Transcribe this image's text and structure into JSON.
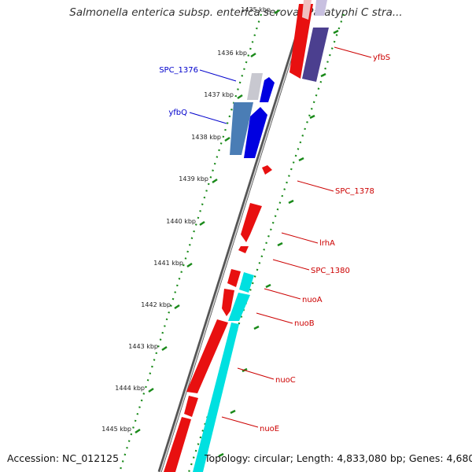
{
  "title": "Salmonella enterica subsp. enterica serovar Paratyphi C stra...",
  "footer": {
    "accession": "Accession: NC_012125",
    "topology": "Topology: circular; Length: 4,833,080 bp; Genes: 4,680"
  },
  "ticks": [
    {
      "label": "1435 kbp"
    },
    {
      "label": "1436 kbp"
    },
    {
      "label": "1437 kbp"
    },
    {
      "label": "1438 kbp"
    },
    {
      "label": "1439 kbp"
    },
    {
      "label": "1440 kbp"
    },
    {
      "label": "1441 kbp"
    },
    {
      "label": "1442 kbp"
    },
    {
      "label": "1443 kbp"
    },
    {
      "label": "1444 kbp"
    },
    {
      "label": "1445 kbp"
    }
  ],
  "genes": [
    {
      "name": "yfbS",
      "strand": "reverse",
      "color": "#4b3f8f"
    },
    {
      "name": "SPC_1376",
      "strand": "forward",
      "color": "#c8c8d0"
    },
    {
      "name": "yfbQ",
      "strand": "forward",
      "color": "#4a7db5"
    },
    {
      "name": "SPC_1378",
      "strand": "reverse",
      "color": "#e81010"
    },
    {
      "name": "lrhA",
      "strand": "reverse",
      "color": "#e81010"
    },
    {
      "name": "SPC_1380",
      "strand": "reverse",
      "color": "#e81010"
    },
    {
      "name": "nuoA",
      "strand": "reverse",
      "color": "#e81010"
    },
    {
      "name": "nuoB",
      "strand": "reverse",
      "color": "#e81010"
    },
    {
      "name": "nuoC",
      "strand": "reverse",
      "color": "#e81010"
    },
    {
      "name": "nuoE",
      "strand": "reverse",
      "color": "#e81010"
    }
  ],
  "colors": {
    "reverse_label": "#cc0000",
    "forward_label": "#0000cc",
    "cds_forward": "#0000e0",
    "cds_reverse": "#e81010",
    "trna_like": "#00e0e0",
    "tick": "#1a8a1a",
    "backbone": "#888888"
  }
}
